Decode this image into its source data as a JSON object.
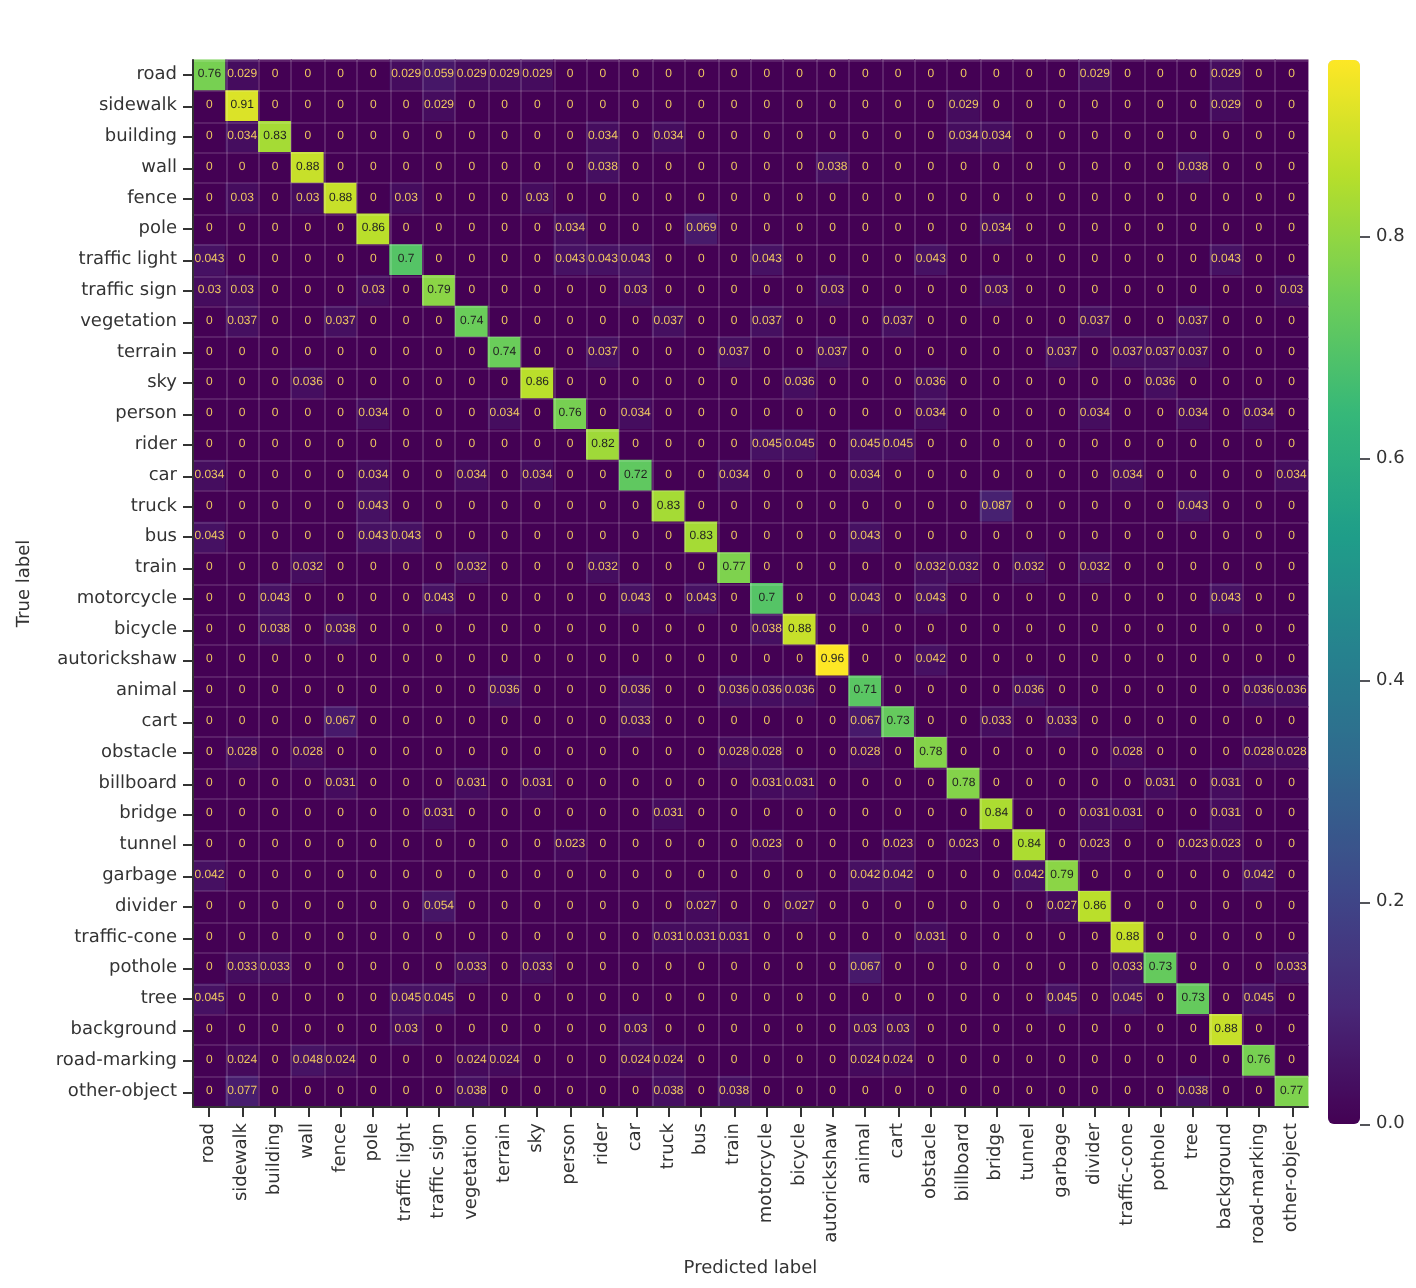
{
  "chart_data": {
    "type": "heatmap",
    "xlabel": "Predicted label",
    "ylabel": "True label",
    "categories": [
      "road",
      "sidewalk",
      "building",
      "wall",
      "fence",
      "pole",
      "traffic light",
      "traffic sign",
      "vegetation",
      "terrain",
      "sky",
      "person",
      "rider",
      "car",
      "truck",
      "bus",
      "train",
      "motorcycle",
      "bicycle",
      "autorickshaw",
      "animal",
      "cart",
      "obstacle",
      "billboard",
      "bridge",
      "tunnel",
      "garbage",
      "divider",
      "traffic-cone",
      "pothole",
      "tree",
      "background",
      "road-marking",
      "other-object"
    ],
    "y_categories": [
      "road",
      "sidewalk",
      "building",
      "wall",
      "fence",
      "pole",
      "traffic light",
      "traffic sign",
      "vegetation",
      "terrain",
      "sky",
      "person",
      "rider",
      "car",
      "truck",
      "bus",
      "train",
      "motorcycle",
      "bicycle",
      "autorickshaw",
      "animal",
      "cart",
      "obstacle",
      "billboard",
      "bridge",
      "tunnel",
      "garbage",
      "divider",
      "traffic-cone",
      "pothole",
      "tree",
      "background",
      "road-marking",
      "other-object"
    ],
    "cells": [
      [
        0.76,
        0.029,
        0,
        0,
        0,
        0,
        0.029,
        0.059,
        0.029,
        0.029,
        0.029,
        0,
        0,
        0,
        0,
        0,
        0,
        0,
        0,
        0,
        0,
        0,
        0,
        0,
        0,
        0,
        0,
        0.029,
        0,
        0,
        0,
        0.029,
        0,
        0
      ],
      [
        0,
        0.91,
        0,
        0,
        0,
        0,
        0,
        0.029,
        0,
        0,
        0,
        0,
        0,
        0,
        0,
        0,
        0,
        0,
        0,
        0,
        0,
        0,
        0,
        0.029,
        0,
        0,
        0,
        0,
        0,
        0,
        0,
        0.029,
        0,
        0
      ],
      [
        0,
        0.034,
        0.83,
        0,
        0,
        0,
        0,
        0,
        0,
        0,
        0,
        0,
        0.034,
        0,
        0.034,
        0,
        0,
        0,
        0,
        0,
        0,
        0,
        0,
        0.034,
        0.034,
        0,
        0,
        0,
        0,
        0,
        0,
        0,
        0,
        0
      ],
      [
        0,
        0,
        0,
        0.88,
        0,
        0,
        0,
        0,
        0,
        0,
        0,
        0,
        0.038,
        0,
        0,
        0,
        0,
        0,
        0,
        0.038,
        0,
        0,
        0,
        0,
        0,
        0,
        0,
        0,
        0,
        0,
        0.038,
        0,
        0,
        0
      ],
      [
        0,
        0.03,
        0,
        0.03,
        0.88,
        0,
        0.03,
        0,
        0,
        0,
        0.03,
        0,
        0,
        0,
        0,
        0,
        0,
        0,
        0,
        0,
        0,
        0,
        0,
        0,
        0,
        0,
        0,
        0,
        0,
        0,
        0,
        0,
        0,
        0
      ],
      [
        0,
        0,
        0,
        0,
        0,
        0.86,
        0,
        0,
        0,
        0,
        0,
        0.034,
        0,
        0,
        0,
        0.069,
        0,
        0,
        0,
        0,
        0,
        0,
        0,
        0,
        0.034,
        0,
        0,
        0,
        0,
        0,
        0,
        0,
        0,
        0
      ],
      [
        0.043,
        0,
        0,
        0,
        0,
        0,
        0.7,
        0,
        0,
        0,
        0,
        0.043,
        0.043,
        0.043,
        0,
        0,
        0,
        0.043,
        0,
        0,
        0,
        0,
        0.043,
        0,
        0,
        0,
        0,
        0,
        0,
        0,
        0,
        0.043,
        0,
        0
      ],
      [
        0.03,
        0.03,
        0,
        0,
        0,
        0.03,
        0,
        0.79,
        0,
        0,
        0,
        0,
        0,
        0.03,
        0,
        0,
        0,
        0,
        0,
        0.03,
        0,
        0,
        0,
        0,
        0.03,
        0,
        0,
        0,
        0,
        0,
        0,
        0,
        0,
        0.03
      ],
      [
        0,
        0.037,
        0,
        0,
        0.037,
        0,
        0,
        0,
        0.74,
        0,
        0,
        0,
        0,
        0,
        0.037,
        0,
        0,
        0.037,
        0,
        0,
        0,
        0.037,
        0,
        0,
        0,
        0,
        0,
        0.037,
        0,
        0,
        0.037,
        0,
        0,
        0
      ],
      [
        0,
        0,
        0,
        0,
        0,
        0,
        0,
        0,
        0,
        0.74,
        0,
        0,
        0.037,
        0,
        0,
        0,
        0.037,
        0,
        0,
        0.037,
        0,
        0,
        0,
        0,
        0,
        0,
        0.037,
        0,
        0.037,
        0.037,
        0.037,
        0,
        0,
        0
      ],
      [
        0,
        0,
        0,
        0.036,
        0,
        0,
        0,
        0,
        0,
        0,
        0.86,
        0,
        0,
        0,
        0,
        0,
        0,
        0,
        0.036,
        0,
        0,
        0,
        0.036,
        0,
        0,
        0,
        0,
        0,
        0,
        0.036,
        0,
        0,
        0,
        0
      ],
      [
        0,
        0,
        0,
        0,
        0,
        0.034,
        0,
        0,
        0,
        0.034,
        0,
        0.76,
        0,
        0.034,
        0,
        0,
        0,
        0,
        0,
        0,
        0,
        0,
        0.034,
        0,
        0,
        0,
        0,
        0.034,
        0,
        0,
        0.034,
        0,
        0.034,
        0
      ],
      [
        0,
        0,
        0,
        0,
        0,
        0,
        0,
        0,
        0,
        0,
        0,
        0,
        0.82,
        0,
        0,
        0,
        0,
        0.045,
        0.045,
        0,
        0.045,
        0.045,
        0,
        0,
        0,
        0,
        0,
        0,
        0,
        0,
        0,
        0,
        0,
        0
      ],
      [
        0.034,
        0,
        0,
        0,
        0,
        0.034,
        0,
        0,
        0.034,
        0,
        0.034,
        0,
        0,
        0.72,
        0,
        0,
        0.034,
        0,
        0,
        0,
        0.034,
        0,
        0,
        0,
        0,
        0,
        0,
        0,
        0.034,
        0,
        0,
        0,
        0,
        0.034
      ],
      [
        0,
        0,
        0,
        0,
        0,
        0.043,
        0,
        0,
        0,
        0,
        0,
        0,
        0,
        0,
        0.83,
        0,
        0,
        0,
        0,
        0,
        0,
        0,
        0,
        0,
        0.087,
        0,
        0,
        0,
        0,
        0,
        0.043,
        0,
        0,
        0
      ],
      [
        0.043,
        0,
        0,
        0,
        0,
        0.043,
        0.043,
        0,
        0,
        0,
        0,
        0,
        0,
        0,
        0,
        0.83,
        0,
        0,
        0,
        0,
        0.043,
        0,
        0,
        0,
        0,
        0,
        0,
        0,
        0,
        0,
        0,
        0,
        0,
        0
      ],
      [
        0,
        0,
        0,
        0.032,
        0,
        0,
        0,
        0,
        0.032,
        0,
        0,
        0,
        0.032,
        0,
        0,
        0,
        0.77,
        0,
        0,
        0,
        0,
        0,
        0.032,
        0.032,
        0,
        0.032,
        0,
        0.032,
        0,
        0,
        0,
        0,
        0,
        0
      ],
      [
        0,
        0,
        0.043,
        0,
        0,
        0,
        0,
        0.043,
        0,
        0,
        0,
        0,
        0,
        0.043,
        0,
        0.043,
        0,
        0.7,
        0,
        0,
        0.043,
        0,
        0.043,
        0,
        0,
        0,
        0,
        0,
        0,
        0,
        0,
        0.043,
        0,
        0
      ],
      [
        0,
        0,
        0.038,
        0,
        0.038,
        0,
        0,
        0,
        0,
        0,
        0,
        0,
        0,
        0,
        0,
        0,
        0,
        0.038,
        0.88,
        0,
        0,
        0,
        0,
        0,
        0,
        0,
        0,
        0,
        0,
        0,
        0,
        0,
        0,
        0
      ],
      [
        0,
        0,
        0,
        0,
        0,
        0,
        0,
        0,
        0,
        0,
        0,
        0,
        0,
        0,
        0,
        0,
        0,
        0,
        0,
        0.96,
        0,
        0,
        0.042,
        0,
        0,
        0,
        0,
        0,
        0,
        0,
        0,
        0,
        0,
        0
      ],
      [
        0,
        0,
        0,
        0,
        0,
        0,
        0,
        0,
        0,
        0.036,
        0,
        0,
        0,
        0.036,
        0,
        0,
        0.036,
        0.036,
        0.036,
        0,
        0.71,
        0,
        0,
        0,
        0,
        0.036,
        0,
        0,
        0,
        0,
        0,
        0,
        0.036,
        0.036
      ],
      [
        0,
        0,
        0,
        0,
        0.067,
        0,
        0,
        0,
        0,
        0,
        0,
        0,
        0,
        0.033,
        0,
        0,
        0,
        0,
        0,
        0,
        0.067,
        0.73,
        0,
        0,
        0.033,
        0,
        0.033,
        0,
        0,
        0,
        0,
        0,
        0,
        0
      ],
      [
        0,
        0.028,
        0,
        0.028,
        0,
        0,
        0,
        0,
        0,
        0,
        0,
        0,
        0,
        0,
        0,
        0,
        0.028,
        0.028,
        0,
        0,
        0.028,
        0,
        0.78,
        0,
        0,
        0,
        0,
        0,
        0.028,
        0,
        0,
        0,
        0.028,
        0.028
      ],
      [
        0,
        0,
        0,
        0,
        0.031,
        0,
        0,
        0,
        0.031,
        0,
        0.031,
        0,
        0,
        0,
        0,
        0,
        0,
        0.031,
        0.031,
        0,
        0,
        0,
        0,
        0.78,
        0,
        0,
        0,
        0,
        0,
        0.031,
        0,
        0.031,
        0,
        0
      ],
      [
        0,
        0,
        0,
        0,
        0,
        0,
        0,
        0.031,
        0,
        0,
        0,
        0,
        0,
        0,
        0.031,
        0,
        0,
        0,
        0,
        0,
        0,
        0,
        0,
        0,
        0.84,
        0,
        0,
        0.031,
        0.031,
        0,
        0,
        0.031,
        0,
        0
      ],
      [
        0,
        0,
        0,
        0,
        0,
        0,
        0,
        0,
        0,
        0,
        0,
        0.023,
        0,
        0,
        0,
        0,
        0,
        0.023,
        0,
        0,
        0,
        0.023,
        0,
        0.023,
        0,
        0.84,
        0,
        0.023,
        0,
        0,
        0.023,
        0.023,
        0,
        0
      ],
      [
        0.042,
        0,
        0,
        0,
        0,
        0,
        0,
        0,
        0,
        0,
        0,
        0,
        0,
        0,
        0,
        0,
        0,
        0,
        0,
        0,
        0.042,
        0.042,
        0,
        0,
        0,
        0.042,
        0.79,
        0,
        0,
        0,
        0,
        0,
        0.042,
        0
      ],
      [
        0,
        0,
        0,
        0,
        0,
        0,
        0,
        0.054,
        0,
        0,
        0,
        0,
        0,
        0,
        0,
        0.027,
        0,
        0,
        0.027,
        0,
        0,
        0,
        0,
        0,
        0,
        0,
        0.027,
        0.86,
        0,
        0,
        0,
        0,
        0,
        0
      ],
      [
        0,
        0,
        0,
        0,
        0,
        0,
        0,
        0,
        0,
        0,
        0,
        0,
        0,
        0,
        0.031,
        0.031,
        0.031,
        0,
        0,
        0,
        0,
        0,
        0.031,
        0,
        0,
        0,
        0,
        0,
        0.88,
        0,
        0,
        0,
        0,
        0
      ],
      [
        0,
        0.033,
        0.033,
        0,
        0,
        0,
        0,
        0,
        0.033,
        0,
        0.033,
        0,
        0,
        0,
        0,
        0,
        0,
        0,
        0,
        0,
        0.067,
        0,
        0,
        0,
        0,
        0,
        0,
        0,
        0.033,
        0.73,
        0,
        0,
        0,
        0.033
      ],
      [
        0.045,
        0,
        0,
        0,
        0,
        0,
        0.045,
        0.045,
        0,
        0,
        0,
        0,
        0,
        0,
        0,
        0,
        0,
        0,
        0,
        0,
        0,
        0,
        0,
        0,
        0,
        0,
        0.045,
        0,
        0.045,
        0,
        0.73,
        0,
        0.045,
        0
      ],
      [
        0,
        0,
        0,
        0,
        0,
        0,
        0.03,
        0,
        0,
        0,
        0,
        0,
        0,
        0.03,
        0,
        0,
        0,
        0,
        0,
        0,
        0.03,
        0.03,
        0,
        0,
        0,
        0,
        0,
        0,
        0,
        0,
        0,
        0.88,
        0,
        0
      ],
      [
        0,
        0.024,
        0,
        0.048,
        0.024,
        0,
        0,
        0,
        0.024,
        0.024,
        0,
        0,
        0,
        0.024,
        0.024,
        0,
        0,
        0,
        0,
        0,
        0.024,
        0.024,
        0,
        0,
        0,
        0,
        0,
        0,
        0,
        0,
        0,
        0,
        0.76,
        0
      ],
      [
        0,
        0.077,
        0,
        0,
        0,
        0,
        0,
        0,
        0.038,
        0,
        0,
        0,
        0,
        0,
        0.038,
        0,
        0.038,
        0,
        0,
        0,
        0,
        0,
        0,
        0,
        0,
        0,
        0,
        0,
        0,
        0,
        0.038,
        0,
        0,
        0.77
      ]
    ],
    "clim": [
      0,
      0.96
    ],
    "cticks": [
      {
        "value": 0,
        "label": "0.0"
      },
      {
        "value": 0.2,
        "label": "0.2"
      },
      {
        "value": 0.4,
        "label": "0.4"
      },
      {
        "value": 0.6,
        "label": "0.6"
      },
      {
        "value": 0.8,
        "label": "0.8"
      }
    ],
    "data_labels": true,
    "grid": true
  }
}
